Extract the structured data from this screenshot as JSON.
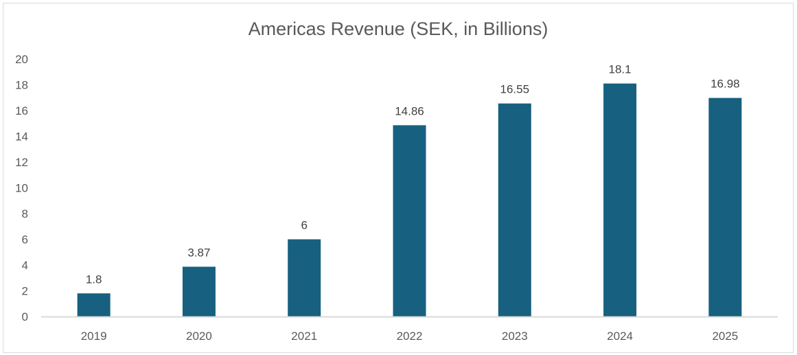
{
  "chart_data": {
    "type": "bar",
    "title": "Americas Revenue (SEK, in Billions)",
    "xlabel": "",
    "ylabel": "",
    "categories": [
      "2019",
      "2020",
      "2021",
      "2022",
      "2023",
      "2024",
      "2025"
    ],
    "values": [
      1.8,
      3.87,
      6,
      14.86,
      16.55,
      18.1,
      16.98
    ],
    "data_labels": [
      "1.8",
      "3.87",
      "6",
      "14.86",
      "16.55",
      "18.1",
      "16.98"
    ],
    "ylim": [
      0,
      20
    ],
    "yticks": [
      "0",
      "2",
      "4",
      "6",
      "8",
      "10",
      "12",
      "14",
      "16",
      "18",
      "20"
    ],
    "grid": false,
    "legend": "none",
    "colors": {
      "bar": "#17607F",
      "axis": "#d9d9d9",
      "text": "#595959"
    }
  }
}
